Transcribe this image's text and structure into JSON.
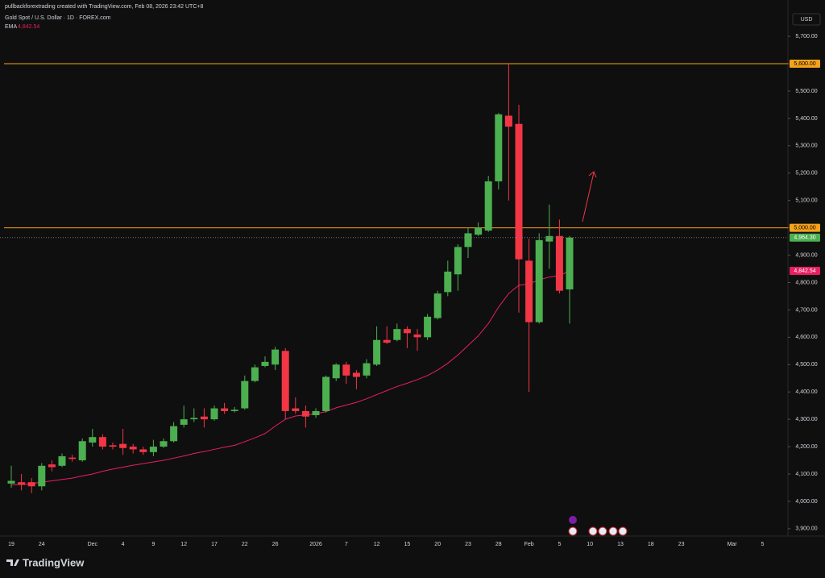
{
  "chart_data": {
    "type": "candlestick",
    "watermark": "pullbackforextrading created with TradingView.com, Feb 08, 2026 23:42 UTC+8",
    "title": "Gold Spot / U.S. Dollar · 1D · FOREX.com",
    "currency": "USD",
    "brand": "TradingView",
    "categories": [
      "19",
      null,
      null,
      "24",
      null,
      null,
      null,
      null,
      "Dec",
      null,
      null,
      "4",
      null,
      null,
      "9",
      null,
      null,
      "12",
      null,
      null,
      "17",
      null,
      null,
      "22",
      null,
      null,
      "26",
      null,
      null,
      null,
      "2026",
      null,
      null,
      "7",
      null,
      null,
      "12",
      null,
      null,
      "15",
      null,
      null,
      "20",
      null,
      null,
      "23",
      null,
      null,
      "28",
      null,
      null,
      "Feb",
      null,
      null,
      "5",
      null,
      null,
      "10",
      null,
      null,
      "13",
      null,
      null,
      "18",
      null,
      null,
      "23",
      null,
      null,
      null,
      null,
      "Mar",
      null,
      null,
      "5"
    ],
    "open": [
      4065,
      4070,
      4070,
      4055,
      4135,
      4130,
      4160,
      4150,
      4215,
      4235,
      4205,
      4210,
      4200,
      4190,
      4180,
      4200,
      4220,
      4280,
      4300,
      4310,
      4300,
      4340,
      4330,
      4340,
      4440,
      4495,
      4500,
      4550,
      4340,
      4330,
      4315,
      4330,
      4450,
      4500,
      4470,
      4460,
      4500,
      4590,
      4590,
      4630,
      4610,
      4600,
      4670,
      4765,
      4830,
      4930,
      4975,
      4990,
      5170,
      5410,
      5380,
      4880,
      4655,
      4950,
      4970,
      4775,
      null,
      null,
      null,
      null,
      null,
      null,
      null,
      null,
      null,
      null,
      null,
      null,
      null,
      null,
      null,
      null,
      null,
      null,
      null
    ],
    "high": [
      4130,
      4100,
      4085,
      4140,
      4150,
      4175,
      4170,
      4230,
      4265,
      4245,
      4215,
      4265,
      4210,
      4200,
      4225,
      4230,
      4290,
      4350,
      4340,
      4340,
      4350,
      4360,
      4345,
      4460,
      4500,
      4530,
      4565,
      4560,
      4380,
      4350,
      4340,
      4460,
      4505,
      4510,
      4480,
      4520,
      4640,
      4640,
      4650,
      4640,
      4630,
      4685,
      4770,
      4880,
      4940,
      5000,
      5020,
      5190,
      5420,
      5600,
      5450,
      4960,
      4980,
      5085,
      5030,
      4970,
      null,
      null,
      null,
      null,
      null,
      null,
      null,
      null,
      null,
      null,
      null,
      null,
      null,
      null,
      null,
      null,
      null,
      null,
      null
    ],
    "low": [
      4050,
      4040,
      4030,
      4040,
      4110,
      4125,
      4145,
      4145,
      4200,
      4190,
      4190,
      4170,
      4175,
      4170,
      4165,
      4195,
      4215,
      4270,
      4290,
      4270,
      4295,
      4320,
      4325,
      4335,
      4435,
      4490,
      4480,
      4300,
      4320,
      4270,
      4305,
      4325,
      4440,
      4430,
      4410,
      4450,
      4495,
      4575,
      4585,
      4560,
      4550,
      4590,
      4665,
      4750,
      4770,
      4890,
      4970,
      4985,
      5140,
      5100,
      4690,
      4400,
      4650,
      4850,
      4760,
      4650,
      null,
      null,
      null,
      null,
      null,
      null,
      null,
      null,
      null,
      null,
      null,
      null,
      null,
      null,
      null,
      null,
      null,
      null,
      null
    ],
    "close": [
      4075,
      4060,
      4055,
      4130,
      4125,
      4165,
      4155,
      4220,
      4235,
      4200,
      4200,
      4195,
      4190,
      4180,
      4200,
      4220,
      4275,
      4300,
      4305,
      4300,
      4340,
      4330,
      4335,
      4440,
      4490,
      4510,
      4555,
      4330,
      4330,
      4310,
      4330,
      4455,
      4500,
      4460,
      4455,
      4505,
      4590,
      4580,
      4630,
      4615,
      4600,
      4675,
      4760,
      4840,
      4930,
      4980,
      5000,
      5170,
      5415,
      5370,
      4885,
      4655,
      4955,
      4970,
      4770,
      4964.3,
      null,
      null,
      null,
      null,
      null,
      null,
      null,
      null,
      null,
      null,
      null,
      null,
      null,
      null,
      null,
      null,
      null,
      null,
      null
    ],
    "last_close_label": "4,964.30",
    "up_color": "#4caf50",
    "down_color": "#f23645",
    "ema": {
      "name": "EMA",
      "color": "#e91e63",
      "last_label": "4,842.54",
      "values": [
        4060,
        4062,
        4065,
        4070,
        4075,
        4080,
        4085,
        4093,
        4100,
        4110,
        4118,
        4125,
        4132,
        4138,
        4144,
        4150,
        4158,
        4166,
        4175,
        4182,
        4190,
        4198,
        4205,
        4218,
        4232,
        4248,
        4275,
        4300,
        4312,
        4316,
        4320,
        4328,
        4342,
        4352,
        4362,
        4375,
        4390,
        4405,
        4420,
        4432,
        4445,
        4460,
        4480,
        4505,
        4535,
        4570,
        4605,
        4650,
        4710,
        4760,
        4790,
        4795,
        4810,
        4820,
        4825,
        4842.54,
        null,
        null,
        null,
        null,
        null,
        null,
        null,
        null,
        null,
        null,
        null,
        null,
        null,
        null,
        null,
        null,
        null,
        null,
        null
      ]
    },
    "levels": [
      {
        "value": 5600,
        "label": "5,600.00"
      },
      {
        "value": 5000,
        "label": "5,000.00"
      }
    ],
    "level_color": "#f7a21b",
    "ylim": [
      3873,
      5833
    ],
    "yticks": [
      {
        "value": 3900,
        "label": "3,900.00"
      },
      {
        "value": 4000,
        "label": "4,000.00"
      },
      {
        "value": 4100,
        "label": "4,100.00"
      },
      {
        "value": 4200,
        "label": "4,200.00"
      },
      {
        "value": 4300,
        "label": "4,300.00"
      },
      {
        "value": 4400,
        "label": "4,400.00"
      },
      {
        "value": 4500,
        "label": "4,500.00"
      },
      {
        "value": 4600,
        "label": "4,600.00"
      },
      {
        "value": 4700,
        "label": "4,700.00"
      },
      {
        "value": 4800,
        "label": "4,800.00"
      },
      {
        "value": 4900,
        "label": "4,900.00"
      },
      {
        "value": 5000,
        "label": "5,000.00"
      },
      {
        "value": 5100,
        "label": "5,100.00"
      },
      {
        "value": 5200,
        "label": "5,200.00"
      },
      {
        "value": 5300,
        "label": "5,300.00"
      },
      {
        "value": 5400,
        "label": "5,400.00"
      },
      {
        "value": 5500,
        "label": "5,500.00"
      },
      {
        "value": 5600,
        "label": "5,600.00"
      },
      {
        "value": 5700,
        "label": "5,700.00"
      }
    ]
  }
}
